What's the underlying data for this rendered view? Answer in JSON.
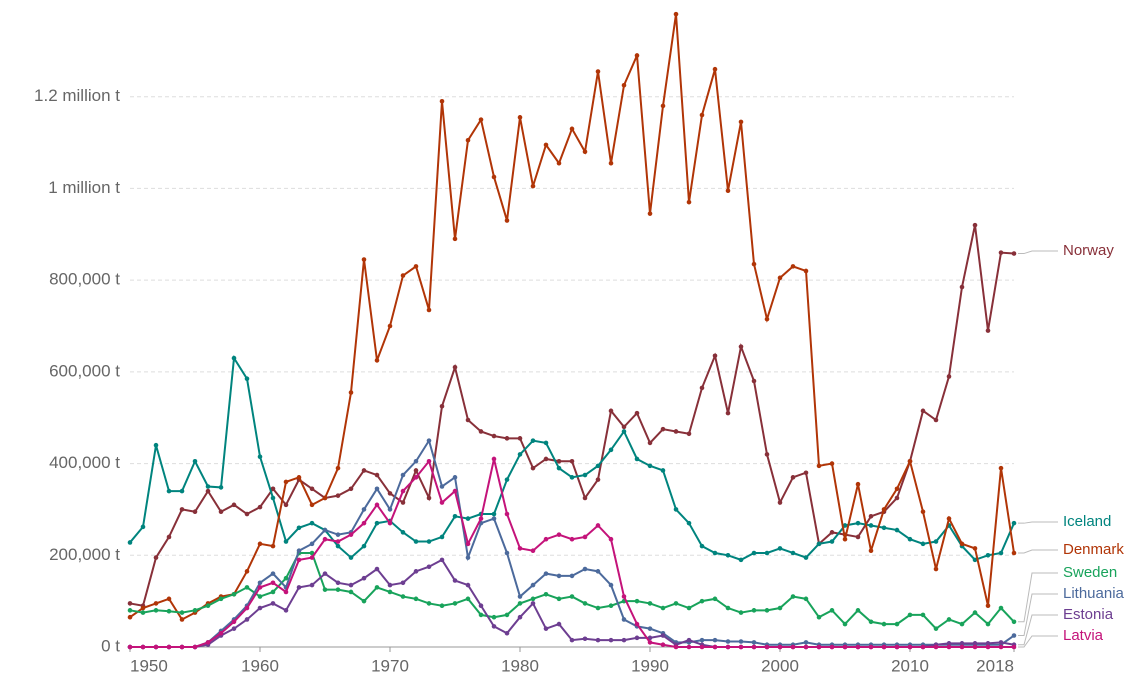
{
  "chart_data": {
    "type": "line",
    "x": [
      1950,
      1951,
      1952,
      1953,
      1954,
      1955,
      1956,
      1957,
      1958,
      1959,
      1960,
      1961,
      1962,
      1963,
      1964,
      1965,
      1966,
      1967,
      1968,
      1969,
      1970,
      1971,
      1972,
      1973,
      1974,
      1975,
      1976,
      1977,
      1978,
      1979,
      1980,
      1981,
      1982,
      1983,
      1984,
      1985,
      1986,
      1987,
      1988,
      1989,
      1990,
      1991,
      1992,
      1993,
      1994,
      1995,
      1996,
      1997,
      1998,
      1999,
      2000,
      2001,
      2002,
      2003,
      2004,
      2005,
      2006,
      2007,
      2008,
      2009,
      2010,
      2011,
      2012,
      2013,
      2014,
      2015,
      2016,
      2017,
      2018
    ],
    "xlim": [
      1950,
      2018
    ],
    "xticks": [
      1950,
      1960,
      1970,
      1980,
      1990,
      2000,
      2010,
      2018
    ],
    "ylim": [
      0,
      1400000
    ],
    "yticks": [
      {
        "value": 0,
        "label": "0 t"
      },
      {
        "value": 200000,
        "label": "200,000 t"
      },
      {
        "value": 400000,
        "label": "400,000 t"
      },
      {
        "value": 600000,
        "label": "600,000 t"
      },
      {
        "value": 800000,
        "label": "800,000 t"
      },
      {
        "value": 1000000,
        "label": "1 million t"
      },
      {
        "value": 1200000,
        "label": "1.2 million t"
      }
    ],
    "grid": true,
    "series": [
      {
        "name": "Norway",
        "color": "#883039",
        "values": [
          95000,
          90000,
          195000,
          240000,
          300000,
          295000,
          340000,
          295000,
          310000,
          290000,
          305000,
          345000,
          310000,
          365000,
          345000,
          325000,
          330000,
          345000,
          385000,
          375000,
          335000,
          315000,
          385000,
          325000,
          525000,
          610000,
          495000,
          470000,
          460000,
          455000,
          455000,
          390000,
          410000,
          405000,
          405000,
          325000,
          365000,
          515000,
          480000,
          510000,
          445000,
          475000,
          470000,
          465000,
          565000,
          635000,
          510000,
          655000,
          580000,
          420000,
          315000,
          370000,
          380000,
          225000,
          250000,
          245000,
          240000,
          285000,
          295000,
          325000,
          405000,
          515000,
          495000,
          590000,
          785000,
          920000,
          690000,
          860000,
          858000
        ]
      },
      {
        "name": "Iceland",
        "color": "#00847e",
        "values": [
          228000,
          262000,
          440000,
          340000,
          340000,
          405000,
          350000,
          348000,
          630000,
          585000,
          415000,
          325000,
          230000,
          260000,
          270000,
          255000,
          220000,
          195000,
          220000,
          270000,
          275000,
          250000,
          230000,
          230000,
          240000,
          285000,
          280000,
          290000,
          290000,
          365000,
          420000,
          450000,
          445000,
          390000,
          370000,
          375000,
          395000,
          430000,
          470000,
          410000,
          395000,
          385000,
          300000,
          270000,
          220000,
          205000,
          200000,
          190000,
          205000,
          205000,
          215000,
          205000,
          195000,
          225000,
          230000,
          265000,
          270000,
          265000,
          260000,
          255000,
          235000,
          225000,
          230000,
          265000,
          220000,
          190000,
          200000,
          205000,
          270000
        ]
      },
      {
        "name": "Denmark",
        "color": "#b13507",
        "values": [
          65000,
          85000,
          95000,
          105000,
          60000,
          75000,
          95000,
          110000,
          115000,
          165000,
          225000,
          220000,
          360000,
          370000,
          310000,
          325000,
          390000,
          555000,
          845000,
          625000,
          700000,
          810000,
          830000,
          735000,
          1190000,
          890000,
          1105000,
          1150000,
          1025000,
          930000,
          1155000,
          1005000,
          1095000,
          1055000,
          1130000,
          1080000,
          1255000,
          1055000,
          1225000,
          1290000,
          945000,
          1180000,
          1380000,
          970000,
          1160000,
          1260000,
          995000,
          1145000,
          835000,
          715000,
          805000,
          830000,
          820000,
          395000,
          400000,
          235000,
          355000,
          210000,
          300000,
          345000,
          405000,
          295000,
          170000,
          280000,
          225000,
          215000,
          90000,
          390000,
          205000
        ]
      },
      {
        "name": "Sweden",
        "color": "#18a35b",
        "values": [
          80000,
          75000,
          80000,
          78000,
          75000,
          80000,
          90000,
          105000,
          115000,
          130000,
          110000,
          120000,
          150000,
          205000,
          205000,
          125000,
          125000,
          120000,
          100000,
          130000,
          120000,
          110000,
          105000,
          95000,
          90000,
          95000,
          105000,
          70000,
          65000,
          70000,
          95000,
          105000,
          115000,
          105000,
          110000,
          95000,
          85000,
          90000,
          100000,
          100000,
          95000,
          85000,
          95000,
          85000,
          100000,
          105000,
          85000,
          75000,
          80000,
          80000,
          85000,
          110000,
          105000,
          65000,
          80000,
          50000,
          80000,
          55000,
          50000,
          50000,
          70000,
          70000,
          40000,
          60000,
          50000,
          75000,
          50000,
          85000,
          55000
        ]
      },
      {
        "name": "Lithuania",
        "color": "#4c6a9c",
        "values": [
          0,
          0,
          0,
          0,
          0,
          0,
          10000,
          35000,
          60000,
          90000,
          140000,
          160000,
          130000,
          210000,
          225000,
          255000,
          245000,
          250000,
          300000,
          345000,
          300000,
          375000,
          405000,
          450000,
          350000,
          370000,
          195000,
          270000,
          280000,
          205000,
          110000,
          135000,
          160000,
          155000,
          155000,
          170000,
          165000,
          135000,
          60000,
          45000,
          40000,
          30000,
          10000,
          10000,
          15000,
          15000,
          12000,
          12000,
          10000,
          5000,
          5000,
          5000,
          10000,
          5000,
          5000,
          5000,
          5000,
          5000,
          5000,
          5000,
          5000,
          5000,
          5000,
          5000,
          5000,
          5000,
          5000,
          5000,
          25000
        ]
      },
      {
        "name": "Estonia",
        "color": "#6d3e91",
        "values": [
          0,
          0,
          0,
          0,
          0,
          0,
          5000,
          25000,
          40000,
          60000,
          85000,
          95000,
          80000,
          130000,
          135000,
          160000,
          140000,
          135000,
          150000,
          170000,
          135000,
          140000,
          165000,
          175000,
          190000,
          145000,
          135000,
          90000,
          45000,
          30000,
          65000,
          95000,
          40000,
          50000,
          15000,
          18000,
          15000,
          15000,
          15000,
          20000,
          20000,
          25000,
          5000,
          15000,
          5000,
          0,
          0,
          0,
          0,
          0,
          0,
          0,
          0,
          0,
          0,
          0,
          0,
          0,
          0,
          0,
          0,
          0,
          5000,
          8000,
          8000,
          8000,
          8000,
          10000,
          5000
        ]
      },
      {
        "name": "Latvia",
        "color": "#c4137a",
        "values": [
          0,
          0,
          0,
          0,
          0,
          0,
          10000,
          30000,
          55000,
          85000,
          130000,
          140000,
          120000,
          190000,
          195000,
          235000,
          230000,
          245000,
          270000,
          310000,
          270000,
          340000,
          370000,
          405000,
          315000,
          340000,
          225000,
          280000,
          410000,
          290000,
          215000,
          210000,
          235000,
          245000,
          235000,
          240000,
          265000,
          235000,
          110000,
          50000,
          10000,
          5000,
          0,
          0,
          0,
          0,
          0,
          0,
          0,
          0,
          0,
          0,
          0,
          0,
          0,
          0,
          0,
          0,
          0,
          0,
          0,
          0,
          0,
          0,
          0,
          0,
          0,
          0,
          0
        ]
      }
    ]
  }
}
